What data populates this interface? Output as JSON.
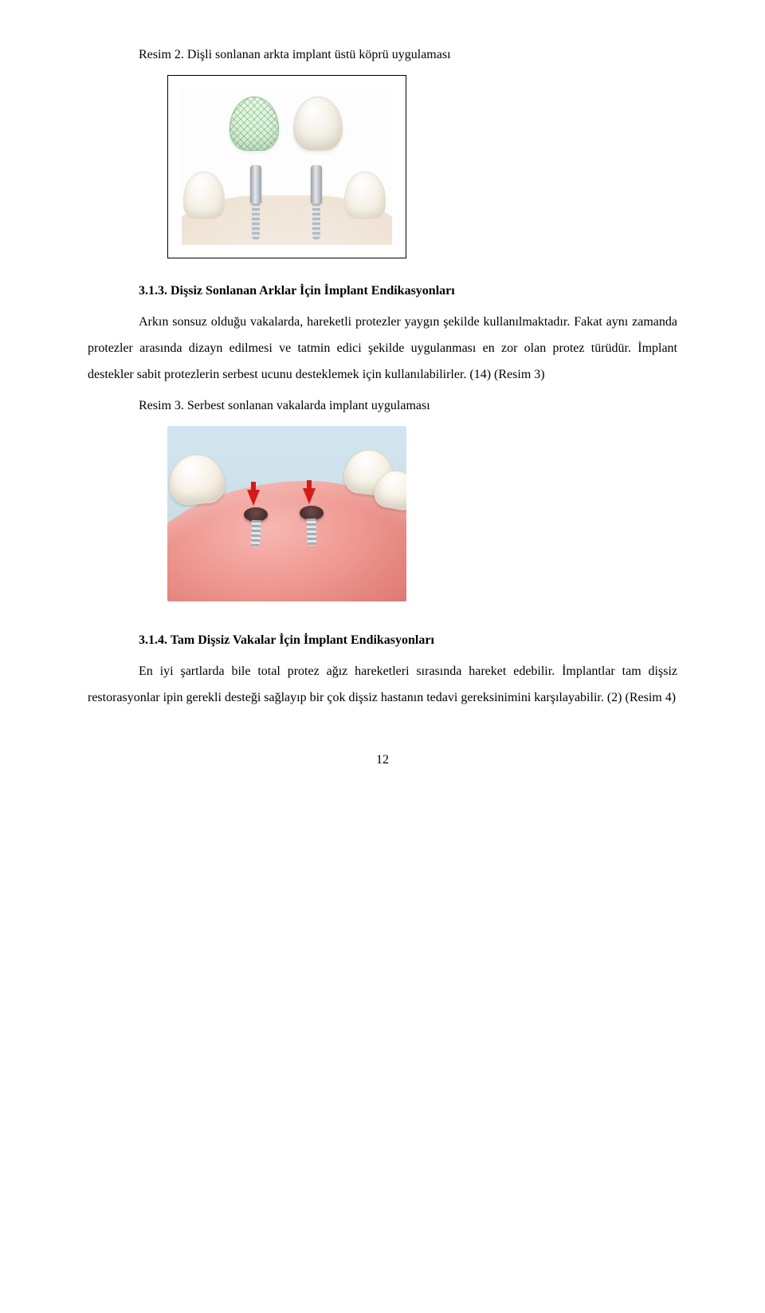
{
  "figure1": {
    "caption": "Resim 2. Dişli sonlanan arkta implant üstü köprü uygulaması"
  },
  "section1": {
    "heading": "3.1.3. Dişsiz Sonlanan Arklar İçin İmplant Endikasyonları",
    "paragraph": "Arkın sonsuz olduğu vakalarda, hareketli protezler yaygın şekilde kullanılmaktadır. Fakat aynı zamanda protezler arasında dizayn edilmesi ve tatmin edici şekilde uygulanması en zor olan protez türüdür. İmplant destekler sabit protezlerin serbest ucunu desteklemek için kullanılabilirler. (14) (Resim 3)"
  },
  "figure2": {
    "caption": "Resim 3. Serbest sonlanan vakalarda implant uygulaması"
  },
  "section2": {
    "heading": "3.1.4. Tam Dişsiz Vakalar İçin İmplant Endikasyonları",
    "paragraph": "En iyi şartlarda bile total protez ağız hareketleri sırasında hareket edebilir. İmplantlar tam dişsiz restorasyonlar ipin gerekli desteği sağlayıp bir çok dişsiz hastanın tedavi gereksinimini karşılayabilir. (2) (Resim 4)"
  },
  "page_number": "12",
  "colors": {
    "text": "#000000",
    "background": "#ffffff"
  }
}
